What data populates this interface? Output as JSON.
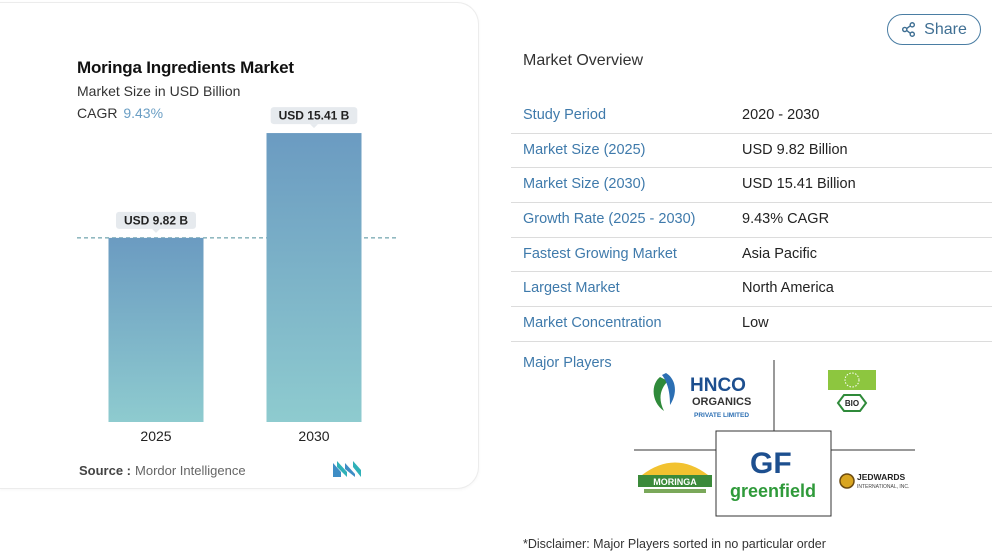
{
  "chart_data": {
    "type": "bar",
    "title": "Moringa Ingredients Market",
    "subtitle": "Market Size in USD Billion",
    "cagr_label": "CAGR",
    "cagr_value": "9.43%",
    "categories": [
      "2025",
      "2030"
    ],
    "values": [
      9.82,
      15.41
    ],
    "data_labels": [
      "USD 9.82 B",
      "USD 15.41 B"
    ],
    "ylim": [
      0,
      16
    ],
    "reference_line_value": 9.82,
    "bar_color_top": "#6b9bc1",
    "bar_color_bottom": "#8ecbcf",
    "grid": false
  },
  "source": {
    "label": "Source :",
    "value": "Mordor Intelligence"
  },
  "share": {
    "label": "Share"
  },
  "overview": {
    "title": "Market Overview",
    "rows": [
      {
        "key": "Study Period",
        "value": "2020 - 2030"
      },
      {
        "key": "Market Size (2025)",
        "value": "USD 9.82 Billion"
      },
      {
        "key": "Market Size (2030)",
        "value": "USD 15.41 Billion"
      },
      {
        "key": "Growth Rate (2025 - 2030)",
        "value": "9.43% CAGR"
      },
      {
        "key": "Fastest Growing Market",
        "value": "Asia Pacific"
      },
      {
        "key": "Largest Market",
        "value": "North America"
      },
      {
        "key": "Market Concentration",
        "value": "Low"
      }
    ]
  },
  "major_players": {
    "label": "Major Players",
    "logos": {
      "hnco": [
        "HNCO",
        "ORGANICS",
        "PRIVATE LIMITED"
      ],
      "bio": "BIO",
      "moringa": "MORINGA",
      "greenfield": [
        "GF",
        "greenfield"
      ],
      "jedwards": [
        "JEDWARDS",
        "INTERNATIONAL, INC."
      ]
    }
  },
  "disclaimer": "*Disclaimer: Major Players sorted in no particular order"
}
